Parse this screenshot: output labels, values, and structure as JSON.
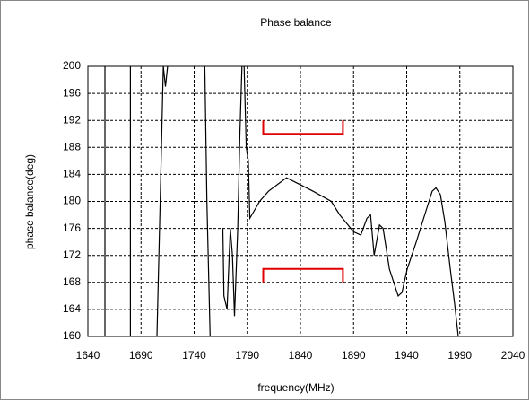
{
  "chart_data": {
    "type": "line",
    "title": "Phase balance",
    "x_label": "frequency(MHz)",
    "y_label": "phase balance(deg)",
    "xlim": [
      1640,
      2040
    ],
    "xticks": [
      1640,
      1690,
      1740,
      1790,
      1840,
      1890,
      1940,
      1990,
      2040
    ],
    "ylim": [
      160,
      200
    ],
    "yticks": [
      160,
      164,
      168,
      172,
      176,
      180,
      184,
      188,
      192,
      196,
      200
    ],
    "grid": true,
    "series": [
      {
        "color": "#000000",
        "x": [
          1656,
          1656,
          null,
          1680,
          1680,
          null,
          1705,
          1708,
          1711,
          1713,
          1715,
          null,
          1750,
          1752,
          1755,
          null,
          1767,
          1768,
          1771,
          1774,
          1776,
          1778,
          1781,
          1783,
          1785,
          null,
          1787,
          1789,
          1791,
          1792.4,
          1801.6,
          1810,
          1822.7,
          1826.9,
          1839.5,
          1852,
          1869,
          1877,
          1890,
          1896.8,
          1902.6,
          1906,
          1909.4,
          1914.4,
          1917.8,
          1923.7,
          1932,
          1935.5,
          1940.5,
          1949,
          1957,
          1964,
          1967.5,
          1971.7,
          1975.9,
          1981,
          1985,
          1988.5
        ],
        "values": [
          200,
          160,
          null,
          200,
          160,
          null,
          160,
          180,
          200,
          197,
          200,
          null,
          200,
          180,
          160,
          null,
          176,
          166,
          164,
          176,
          172,
          163,
          176,
          190,
          200,
          null,
          200,
          188,
          186,
          177.5,
          180,
          181.5,
          183,
          183.5,
          182.5,
          181.5,
          180,
          178,
          175.5,
          175,
          177.5,
          178,
          172,
          176.5,
          176,
          170,
          166,
          166.5,
          170,
          174,
          178,
          181.5,
          182,
          181,
          177,
          170,
          165,
          160
        ]
      }
    ],
    "limits": [
      {
        "x": [
          1805,
          1880
        ],
        "value": 190,
        "end": 192,
        "color": "#e00000"
      },
      {
        "x": [
          1805,
          1880
        ],
        "value": 170,
        "end": 168,
        "color": "#e00000"
      }
    ]
  }
}
